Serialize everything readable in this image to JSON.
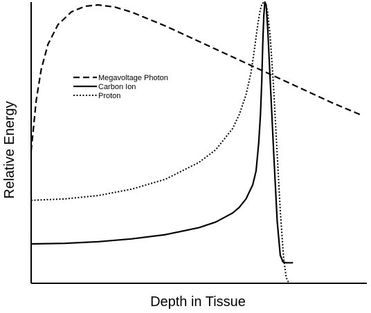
{
  "chart_data": {
    "type": "line",
    "title": "",
    "xlabel": "Depth in Tissue",
    "ylabel": "Relative Energy",
    "xlim": [
      0,
      100
    ],
    "ylim": [
      0,
      100
    ],
    "grid": false,
    "ticks": false,
    "legend_position": "center-left",
    "series": [
      {
        "name": "Megavoltage Photon",
        "dash": "dashed",
        "color": "#000000",
        "points": [
          [
            0,
            47
          ],
          [
            1.5,
            65
          ],
          [
            3,
            76
          ],
          [
            5,
            85
          ],
          [
            8,
            92
          ],
          [
            12,
            96.5
          ],
          [
            16,
            98.5
          ],
          [
            20,
            99
          ],
          [
            25,
            98.2
          ],
          [
            30,
            96.4
          ],
          [
            40,
            91.5
          ],
          [
            50,
            86
          ],
          [
            60,
            80.5
          ],
          [
            70,
            75
          ],
          [
            80,
            69.5
          ],
          [
            90,
            64
          ],
          [
            98,
            60
          ]
        ]
      },
      {
        "name": "Carbon Ion",
        "dash": "solid",
        "color": "#000000",
        "points": [
          [
            0,
            14
          ],
          [
            10,
            14.2
          ],
          [
            20,
            14.8
          ],
          [
            30,
            15.8
          ],
          [
            40,
            17.3
          ],
          [
            50,
            19.8
          ],
          [
            55,
            21.8
          ],
          [
            60,
            25
          ],
          [
            62,
            27
          ],
          [
            64,
            30
          ],
          [
            66,
            35
          ],
          [
            67,
            40
          ],
          [
            67.8,
            50
          ],
          [
            68.3,
            60
          ],
          [
            68.7,
            72
          ],
          [
            69,
            85
          ],
          [
            69.3,
            95
          ],
          [
            69.6,
            100
          ],
          [
            70,
            99
          ],
          [
            70.5,
            90
          ],
          [
            71.3,
            70
          ],
          [
            72.3,
            45
          ],
          [
            73.3,
            22
          ],
          [
            74.2,
            10
          ],
          [
            75,
            7.6
          ],
          [
            76,
            7.3
          ],
          [
            78,
            7.3
          ]
        ]
      },
      {
        "name": "Proton",
        "dash": "dotted",
        "color": "#000000",
        "points": [
          [
            0,
            29.5
          ],
          [
            10,
            30
          ],
          [
            20,
            31.2
          ],
          [
            30,
            33.5
          ],
          [
            40,
            37
          ],
          [
            50,
            43
          ],
          [
            55,
            47.5
          ],
          [
            60,
            55
          ],
          [
            62,
            60
          ],
          [
            64,
            67
          ],
          [
            65.5,
            75
          ],
          [
            66.5,
            83
          ],
          [
            67.5,
            92
          ],
          [
            68.2,
            97
          ],
          [
            68.8,
            99.5
          ],
          [
            69.6,
            100
          ],
          [
            70.4,
            97
          ],
          [
            71.2,
            88
          ],
          [
            72.2,
            70
          ],
          [
            73.2,
            48
          ],
          [
            74.2,
            26
          ],
          [
            75.2,
            9
          ],
          [
            76,
            2
          ],
          [
            76.8,
            0
          ],
          [
            78,
            0
          ],
          [
            80,
            0
          ]
        ]
      }
    ]
  }
}
